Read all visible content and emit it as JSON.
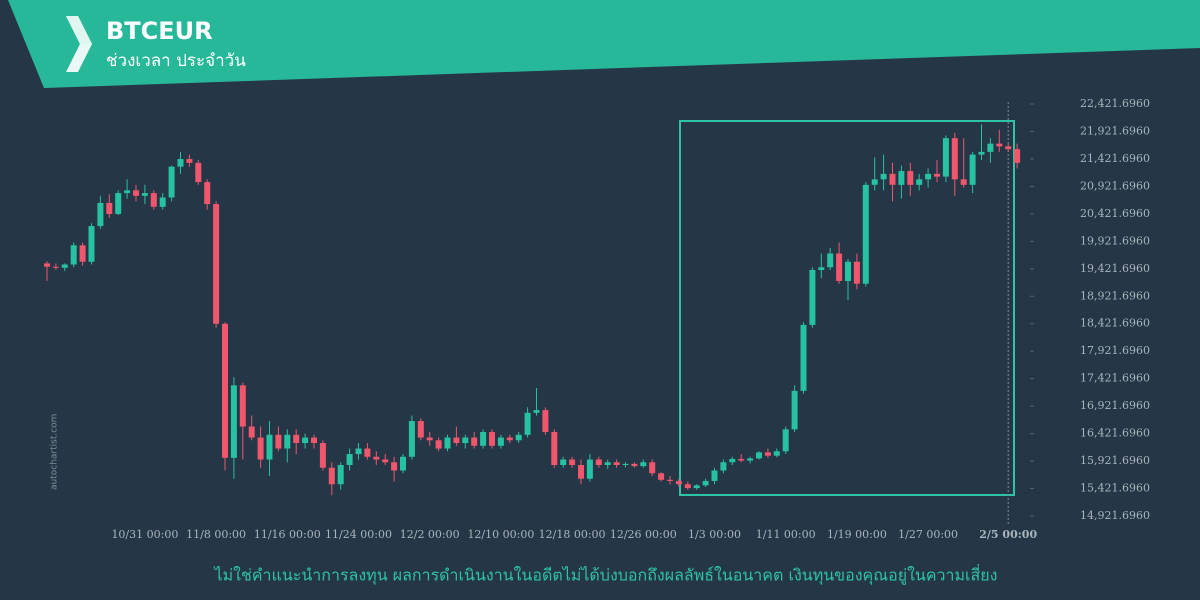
{
  "header": {
    "title": "BTCEUR",
    "subtitle": "ช่วงเวลา ประจำวัน"
  },
  "watermark": "autochartist.com",
  "footer": "ไม่ใช่คำแนะนำการลงทุน ผลการดำเนินงานในอดีตไม่ได้บ่งบอกถึงผลลัพธ์ในอนาคต เงินทุนของคุณอยู่ในความเสี่ยง",
  "chart_data": {
    "type": "candlestick",
    "up_color": "#26c2a2",
    "down_color": "#f0566c",
    "x": [
      "10/20 00:00",
      "10/21 00:00",
      "10/22 00:00",
      "10/23 00:00",
      "10/24 00:00",
      "10/25 00:00",
      "10/26 00:00",
      "10/27 00:00",
      "10/28 00:00",
      "10/29 00:00",
      "10/30 00:00",
      "10/31 00:00",
      "11/1 00:00",
      "11/2 00:00",
      "11/3 00:00",
      "11/4 00:00",
      "11/5 00:00",
      "11/6 00:00",
      "11/7 00:00",
      "11/8 00:00",
      "11/9 00:00",
      "11/10 00:00",
      "11/11 00:00",
      "11/12 00:00",
      "11/13 00:00",
      "11/14 00:00",
      "11/15 00:00",
      "11/16 00:00",
      "11/17 00:00",
      "11/18 00:00",
      "11/19 00:00",
      "11/20 00:00",
      "11/21 00:00",
      "11/22 00:00",
      "11/23 00:00",
      "11/24 00:00",
      "11/25 00:00",
      "11/26 00:00",
      "11/27 00:00",
      "11/28 00:00",
      "11/29 00:00",
      "11/30 00:00",
      "12/1 00:00",
      "12/2 00:00",
      "12/3 00:00",
      "12/4 00:00",
      "12/5 00:00",
      "12/6 00:00",
      "12/7 00:00",
      "12/8 00:00",
      "12/9 00:00",
      "12/10 00:00",
      "12/11 00:00",
      "12/12 00:00",
      "12/13 00:00",
      "12/14 00:00",
      "12/15 00:00",
      "12/16 00:00",
      "12/17 00:00",
      "12/18 00:00",
      "12/19 00:00",
      "12/20 00:00",
      "12/21 00:00",
      "12/22 00:00",
      "12/23 00:00",
      "12/24 00:00",
      "12/25 00:00",
      "12/26 00:00",
      "12/27 00:00",
      "12/28 00:00",
      "12/29 00:00",
      "12/30 00:00",
      "12/31 00:00",
      "1/1 00:00",
      "1/2 00:00",
      "1/3 00:00",
      "1/4 00:00",
      "1/5 00:00",
      "1/6 00:00",
      "1/7 00:00",
      "1/8 00:00",
      "1/9 00:00",
      "1/10 00:00",
      "1/11 00:00",
      "1/12 00:00",
      "1/13 00:00",
      "1/14 00:00",
      "1/15 00:00",
      "1/16 00:00",
      "1/17 00:00",
      "1/18 00:00",
      "1/19 00:00",
      "1/20 00:00",
      "1/21 00:00",
      "1/22 00:00",
      "1/23 00:00",
      "1/24 00:00",
      "1/25 00:00",
      "1/26 00:00",
      "1/27 00:00",
      "1/28 00:00",
      "1/29 00:00",
      "1/30 00:00",
      "1/31 00:00",
      "2/1 00:00",
      "2/2 00:00",
      "2/3 00:00",
      "2/4 00:00",
      "2/5 00:00",
      "2/6 00:00"
    ],
    "open": [
      19520,
      19460,
      19440,
      19500,
      19850,
      19550,
      20200,
      20620,
      20420,
      20800,
      20850,
      20750,
      20800,
      20550,
      20720,
      21280,
      21420,
      21350,
      21000,
      20600,
      18420,
      15980,
      17300,
      16550,
      16350,
      15950,
      16400,
      16150,
      16400,
      16250,
      16350,
      16250,
      15800,
      15500,
      15850,
      16050,
      16150,
      16000,
      15950,
      15900,
      15750,
      16000,
      16650,
      16350,
      16300,
      16150,
      16350,
      16250,
      16350,
      16200,
      16450,
      16200,
      16350,
      16300,
      16400,
      16800,
      16850,
      16450,
      15850,
      15950,
      15850,
      15600,
      15950,
      15850,
      15900,
      15850,
      15870,
      15830,
      15900,
      15700,
      15580,
      15560,
      15500,
      15430,
      15480,
      15560,
      15750,
      15900,
      15960,
      15930,
      15970,
      16080,
      16020,
      16100,
      16500,
      17200,
      18400,
      19400,
      19450,
      19700,
      19200,
      19550,
      19150,
      20950,
      21050,
      21150,
      20950,
      21200,
      20950,
      21050,
      21150,
      21100,
      21800,
      21050,
      20950,
      21500,
      21550,
      21700,
      21650,
      21600
    ],
    "high": [
      19560,
      19520,
      19520,
      19900,
      19900,
      20250,
      20750,
      20780,
      20850,
      21050,
      20950,
      20950,
      20850,
      20800,
      21300,
      21550,
      21500,
      21400,
      21050,
      20650,
      18450,
      17450,
      17350,
      16750,
      16550,
      16650,
      16550,
      16500,
      16500,
      16420,
      16400,
      16300,
      15900,
      15900,
      16150,
      16250,
      16250,
      16100,
      16050,
      16000,
      16050,
      16750,
      16700,
      16450,
      16350,
      16400,
      16550,
      16400,
      16450,
      16500,
      16500,
      16400,
      16400,
      16450,
      16900,
      17250,
      16900,
      16500,
      16000,
      16000,
      15950,
      16050,
      16000,
      15950,
      15950,
      15900,
      15900,
      15950,
      15950,
      15720,
      15650,
      15600,
      15550,
      15500,
      15600,
      15800,
      15950,
      16000,
      16050,
      16000,
      16100,
      16150,
      16150,
      16550,
      17300,
      18450,
      19450,
      19700,
      19800,
      19900,
      19600,
      19700,
      21000,
      21450,
      21500,
      21350,
      21300,
      21350,
      21150,
      21250,
      21400,
      21850,
      21900,
      21800,
      21550,
      22050,
      21800,
      21950,
      21700,
      21700
    ],
    "low": [
      19200,
      19400,
      19380,
      19450,
      19480,
      19500,
      20150,
      20350,
      20400,
      20700,
      20650,
      20600,
      20500,
      20500,
      20650,
      21150,
      21280,
      20950,
      20500,
      18350,
      15750,
      15600,
      15950,
      16300,
      15800,
      15650,
      16100,
      15900,
      16050,
      16150,
      16150,
      15750,
      15300,
      15400,
      15750,
      15950,
      15950,
      15850,
      15850,
      15550,
      15700,
      15950,
      16300,
      16200,
      16100,
      16100,
      16200,
      16150,
      16150,
      16150,
      16150,
      16150,
      16250,
      16250,
      16350,
      16750,
      16400,
      15800,
      15800,
      15800,
      15500,
      15550,
      15800,
      15780,
      15800,
      15810,
      15800,
      15800,
      15650,
      15550,
      15500,
      15450,
      15400,
      15400,
      15450,
      15500,
      15700,
      15850,
      15900,
      15880,
      15950,
      15980,
      15990,
      16050,
      16450,
      17150,
      18350,
      19250,
      19400,
      19150,
      18850,
      19050,
      19100,
      20850,
      20850,
      20650,
      20700,
      20750,
      20850,
      20900,
      21000,
      21000,
      20750,
      20900,
      20800,
      21400,
      21350,
      21550,
      21550,
      21250
    ],
    "close": [
      19460,
      19440,
      19500,
      19850,
      19550,
      20200,
      20620,
      20420,
      20800,
      20850,
      20750,
      20800,
      20550,
      20720,
      21280,
      21420,
      21350,
      21000,
      20600,
      18420,
      15980,
      17300,
      16550,
      16350,
      15950,
      16400,
      16150,
      16400,
      16250,
      16350,
      16250,
      15800,
      15500,
      15850,
      16050,
      16150,
      16000,
      15950,
      15900,
      15750,
      16000,
      16650,
      16350,
      16300,
      16150,
      16350,
      16250,
      16350,
      16200,
      16450,
      16200,
      16350,
      16300,
      16400,
      16800,
      16850,
      16450,
      15850,
      15950,
      15850,
      15600,
      15950,
      15850,
      15900,
      15850,
      15870,
      15830,
      15900,
      15700,
      15580,
      15560,
      15500,
      15430,
      15480,
      15560,
      15750,
      15900,
      15960,
      15930,
      15970,
      16080,
      16020,
      16100,
      16500,
      17200,
      18400,
      19400,
      19450,
      19700,
      19200,
      19550,
      19150,
      20950,
      21050,
      21150,
      20950,
      21200,
      20950,
      21050,
      21150,
      21100,
      21800,
      21050,
      20950,
      21500,
      21550,
      21700,
      21650,
      21600,
      21350
    ],
    "ylim": [
      14921.696,
      22421.696
    ],
    "yticks": [
      {
        "value": 14921.696,
        "label": "14,921.6960"
      },
      {
        "value": 15421.696,
        "label": "15,421.6960"
      },
      {
        "value": 15921.696,
        "label": "15,921.6960"
      },
      {
        "value": 16421.696,
        "label": "16,421.6960"
      },
      {
        "value": 16921.696,
        "label": "16,921.6960"
      },
      {
        "value": 17421.696,
        "label": "17,421.6960"
      },
      {
        "value": 17921.696,
        "label": "17,921.6960"
      },
      {
        "value": 18421.696,
        "label": "18,421.6960"
      },
      {
        "value": 18921.696,
        "label": "18,921.6960"
      },
      {
        "value": 19421.696,
        "label": "19,421.6960"
      },
      {
        "value": 19921.696,
        "label": "19,921.6960"
      },
      {
        "value": 20421.696,
        "label": "20,421.6960"
      },
      {
        "value": 20921.696,
        "label": "20,921.6960"
      },
      {
        "value": 21421.696,
        "label": "21,421.6960"
      },
      {
        "value": 21921.696,
        "label": "21,921.6960"
      },
      {
        "value": 22421.696,
        "label": "22,421.6960"
      }
    ],
    "xticks": [
      "10/31 00:00",
      "11/8 00:00",
      "11/16 00:00",
      "11/24 00:00",
      "12/2 00:00",
      "12/10 00:00",
      "12/18 00:00",
      "12/26 00:00",
      "1/3 00:00",
      "1/11 00:00",
      "1/19 00:00",
      "1/27 00:00",
      "2/5 00:00"
    ]
  }
}
